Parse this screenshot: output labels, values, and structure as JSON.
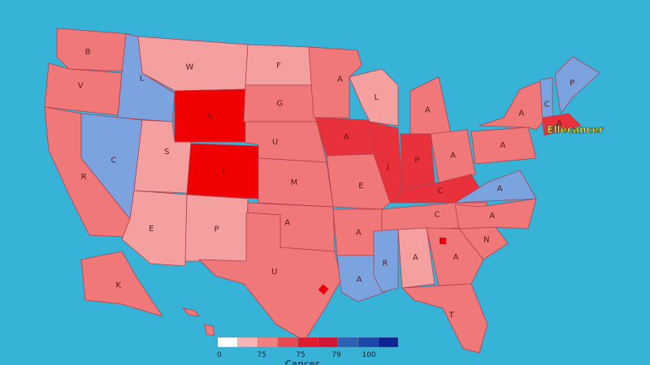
{
  "callout": "Ellecancer",
  "caption": "Cancer",
  "states": [
    {
      "label": "B",
      "color": "#f07878"
    },
    {
      "label": "V",
      "color": "#f07878"
    },
    {
      "label": "L",
      "color": "#7ba3e0"
    },
    {
      "label": "W",
      "color": "#f4a0a0"
    },
    {
      "label": "S",
      "color": "#f00000"
    },
    {
      "label": "F",
      "color": "#f4a0a0"
    },
    {
      "label": "G",
      "color": "#f07878"
    },
    {
      "label": "U",
      "color": "#f07878"
    },
    {
      "label": "R",
      "color": "#f07878"
    },
    {
      "label": "C",
      "color": "#7ba3e0"
    },
    {
      "label": "S",
      "color": "#f4a0a0"
    },
    {
      "label": "L",
      "color": "#f00000"
    },
    {
      "label": "E",
      "color": "#f4a0a0"
    },
    {
      "label": "P",
      "color": "#f4a0a0"
    },
    {
      "label": "M",
      "color": "#f07878"
    },
    {
      "label": "A",
      "color": "#f07878"
    },
    {
      "label": "U",
      "color": "#f07878"
    },
    {
      "label": "A",
      "color": "#f07878"
    },
    {
      "label": "A",
      "color": "#e8313a"
    },
    {
      "label": "E",
      "color": "#f07878"
    },
    {
      "label": "A",
      "color": "#f07878"
    },
    {
      "label": "A",
      "color": "#7ba3e0"
    },
    {
      "label": "L",
      "color": "#f4a0a0"
    },
    {
      "label": "J",
      "color": "#e8313a"
    },
    {
      "label": "A",
      "color": "#f07878"
    },
    {
      "label": "P",
      "color": "#e8313a"
    },
    {
      "label": "A",
      "color": "#f07878"
    },
    {
      "label": "C",
      "color": "#e8313a"
    },
    {
      "label": "C",
      "color": "#f07878"
    },
    {
      "label": "R",
      "color": "#7ba3e0"
    },
    {
      "label": "A",
      "color": "#f4a0a0"
    },
    {
      "label": "A",
      "color": "#f07878"
    },
    {
      "label": "T",
      "color": "#f07878"
    },
    {
      "label": "N",
      "color": "#f07878"
    },
    {
      "label": "A",
      "color": "#f07878"
    },
    {
      "label": "A",
      "color": "#7ba3e0"
    },
    {
      "label": "A",
      "color": "#f07878"
    },
    {
      "label": "A",
      "color": "#f07878"
    },
    {
      "label": "C",
      "color": "#7ba3e0"
    },
    {
      "label": "P",
      "color": "#7ba3e0"
    },
    {
      "label": "A",
      "color": "#e8313a"
    },
    {
      "label": "K",
      "color": "#f07878"
    }
  ],
  "legend": {
    "colors": [
      "#ffffff",
      "#f8b4b4",
      "#f08080",
      "#e84a55",
      "#e01a30",
      "#d01535",
      "#2a62b8",
      "#1a48a8",
      "#0c2590"
    ],
    "labels": [
      "0",
      "75",
      "75",
      "79",
      "100"
    ]
  }
}
